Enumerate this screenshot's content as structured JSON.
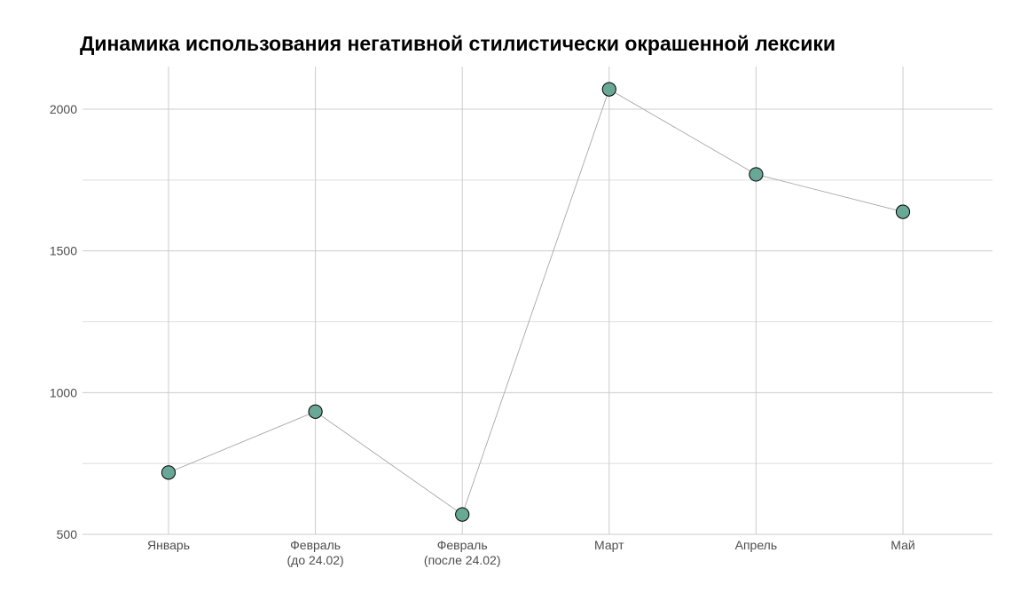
{
  "chart_data": {
    "type": "line",
    "title": "Динамика использования негативной стилистически окрашенной лексики",
    "xlabel": "",
    "ylabel": "",
    "categories": [
      [
        "Январь"
      ],
      [
        "Февраль",
        "(до 24.02)"
      ],
      [
        "Февраль",
        "(после 24.02)"
      ],
      [
        "Март"
      ],
      [
        "Апрель"
      ],
      [
        "Май"
      ]
    ],
    "series": [
      {
        "values": [
          718,
          933,
          570,
          2070,
          1770,
          1638
        ]
      }
    ],
    "ylim": [
      500,
      2150
    ],
    "yticks": [
      500,
      1000,
      1500,
      2000
    ],
    "grid": true,
    "legend": "none",
    "colors": {
      "point_fill": "#69a896",
      "point_stroke": "#000000",
      "line": "#9e9e9e",
      "grid_major": "#cccccc",
      "grid_minor": "#dedede",
      "tick_text": "#4d4d4d"
    }
  }
}
